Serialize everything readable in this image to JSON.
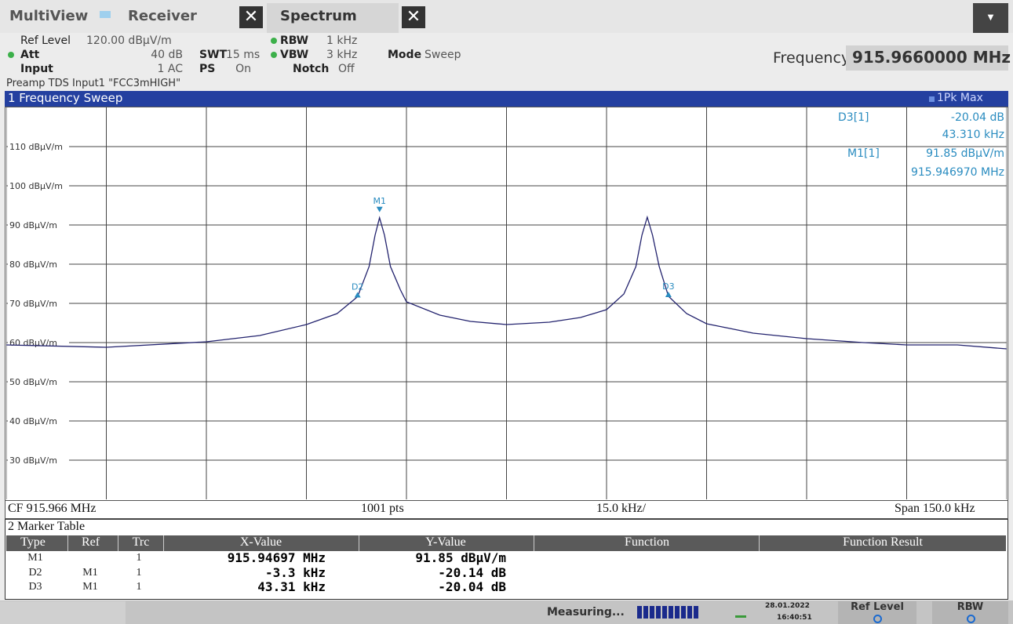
{
  "header": {
    "tabs": [
      "MultiView",
      "Receiver",
      "Spectrum"
    ],
    "settings": {
      "ref_level_label": "Ref Level",
      "ref_level": "120.00 dBµV/m",
      "rbw_label": "RBW",
      "rbw": "1 kHz",
      "att_label": "Att",
      "att": "40 dB",
      "swt_label": "SWT",
      "swt": "15 ms",
      "vbw_label": "VBW",
      "vbw": "3 kHz",
      "mode_label": "Mode",
      "mode": "Sweep",
      "input_label": "Input",
      "input": "1 AC",
      "ps_label": "PS",
      "ps": "On",
      "notch_label": "Notch",
      "notch": "Off"
    },
    "frequency_label": "Frequency",
    "frequency": "915.9660000 MHz",
    "preamp": "Preamp TDS Input1 \"FCC3mHIGH\""
  },
  "window": {
    "title": "1 Frequency Sweep",
    "trace": "1Pk Max",
    "marker_info": [
      "D3[1]",
      "-20.04 dB",
      "43.310 kHz",
      "M1[1]",
      "91.85 dBµV/m",
      "915.946970 MHz"
    ],
    "footer": [
      "CF 915.966 MHz",
      "1001 pts",
      "15.0 kHz/",
      "Span 150.0 kHz"
    ]
  },
  "chart_data": {
    "type": "line",
    "xlim": [
      915.891,
      916.041
    ],
    "xticks": [
      915.891,
      915.906,
      915.921,
      915.936,
      915.951,
      915.966,
      915.981,
      915.996,
      916.011,
      916.026,
      916.041
    ],
    "ylim": [
      20,
      120
    ],
    "yticks": [
      {
        "value": 30,
        "label": "30 dBµV/m"
      },
      {
        "value": 40,
        "label": "40 dBµV/m"
      },
      {
        "value": 50,
        "label": "50 dBµV/m"
      },
      {
        "value": 60,
        "label": "60 dBµV/m"
      },
      {
        "value": 70,
        "label": "70 dBµV/m"
      },
      {
        "value": 80,
        "label": "80 dBµV/m"
      },
      {
        "value": 90,
        "label": "90 dBµV/m"
      },
      {
        "value": 100,
        "label": "100 dBµV/m"
      },
      {
        "value": 110,
        "label": "110 dBµV/m"
      }
    ],
    "grid": true,
    "x": [
      915.891,
      915.906,
      915.921,
      915.929,
      915.936,
      915.9406,
      915.94367,
      915.9454,
      915.9463,
      915.94697,
      915.9477,
      915.9486,
      915.9501,
      915.951,
      915.956,
      915.9606,
      915.966,
      915.9724,
      915.9771,
      915.981,
      915.9836,
      915.9854,
      915.9863,
      915.9871,
      915.9879,
      915.9889,
      915.99028,
      915.993,
      915.996,
      916.003,
      916.011,
      916.0195,
      916.026,
      916.0336,
      916.041
    ],
    "series": [
      {
        "color": "#23236e",
        "values": [
          59.4,
          58.8,
          60.2,
          61.8,
          64.6,
          67.4,
          71.71,
          79.4,
          87.4,
          91.85,
          87.4,
          79.4,
          73.4,
          70.4,
          67,
          65.4,
          64.6,
          65.2,
          66.4,
          68.4,
          72.4,
          79.4,
          87.4,
          92,
          87.4,
          79.4,
          71.81,
          67.4,
          64.8,
          62.4,
          61,
          60,
          59.4,
          59.4,
          58.4
        ]
      }
    ],
    "markers": [
      {
        "name": "M1",
        "x": 915.94697,
        "y": 91.85
      },
      {
        "name": "D2",
        "x": 915.94367,
        "y": 71.71
      },
      {
        "name": "D3",
        "x": 915.99028,
        "y": 71.81
      }
    ],
    "marker_color": "#2a8cc0"
  },
  "marker_table": {
    "title": "2 Marker Table",
    "columns": [
      "Type",
      "Ref",
      "Trc",
      "X-Value",
      "Y-Value",
      "Function",
      "Function Result"
    ],
    "rows": [
      {
        "type": "M1",
        "trc": "1",
        "x_value": "915.94697 MHz",
        "y_value": "91.85 dBµV/m"
      },
      {
        "type": "D2",
        "ref": "M1",
        "trc": "1",
        "x_value": "-3.3 kHz",
        "y_value": "-20.14 dB"
      },
      {
        "type": "D3",
        "ref": "M1",
        "trc": "1",
        "x_value": "43.31 kHz",
        "y_value": "-20.04 dB"
      }
    ]
  },
  "status": {
    "measuring": "Measuring...",
    "date": "28.01.2022",
    "time": "16:40:51",
    "buttons": [
      "Ref Level",
      "RBW"
    ]
  }
}
